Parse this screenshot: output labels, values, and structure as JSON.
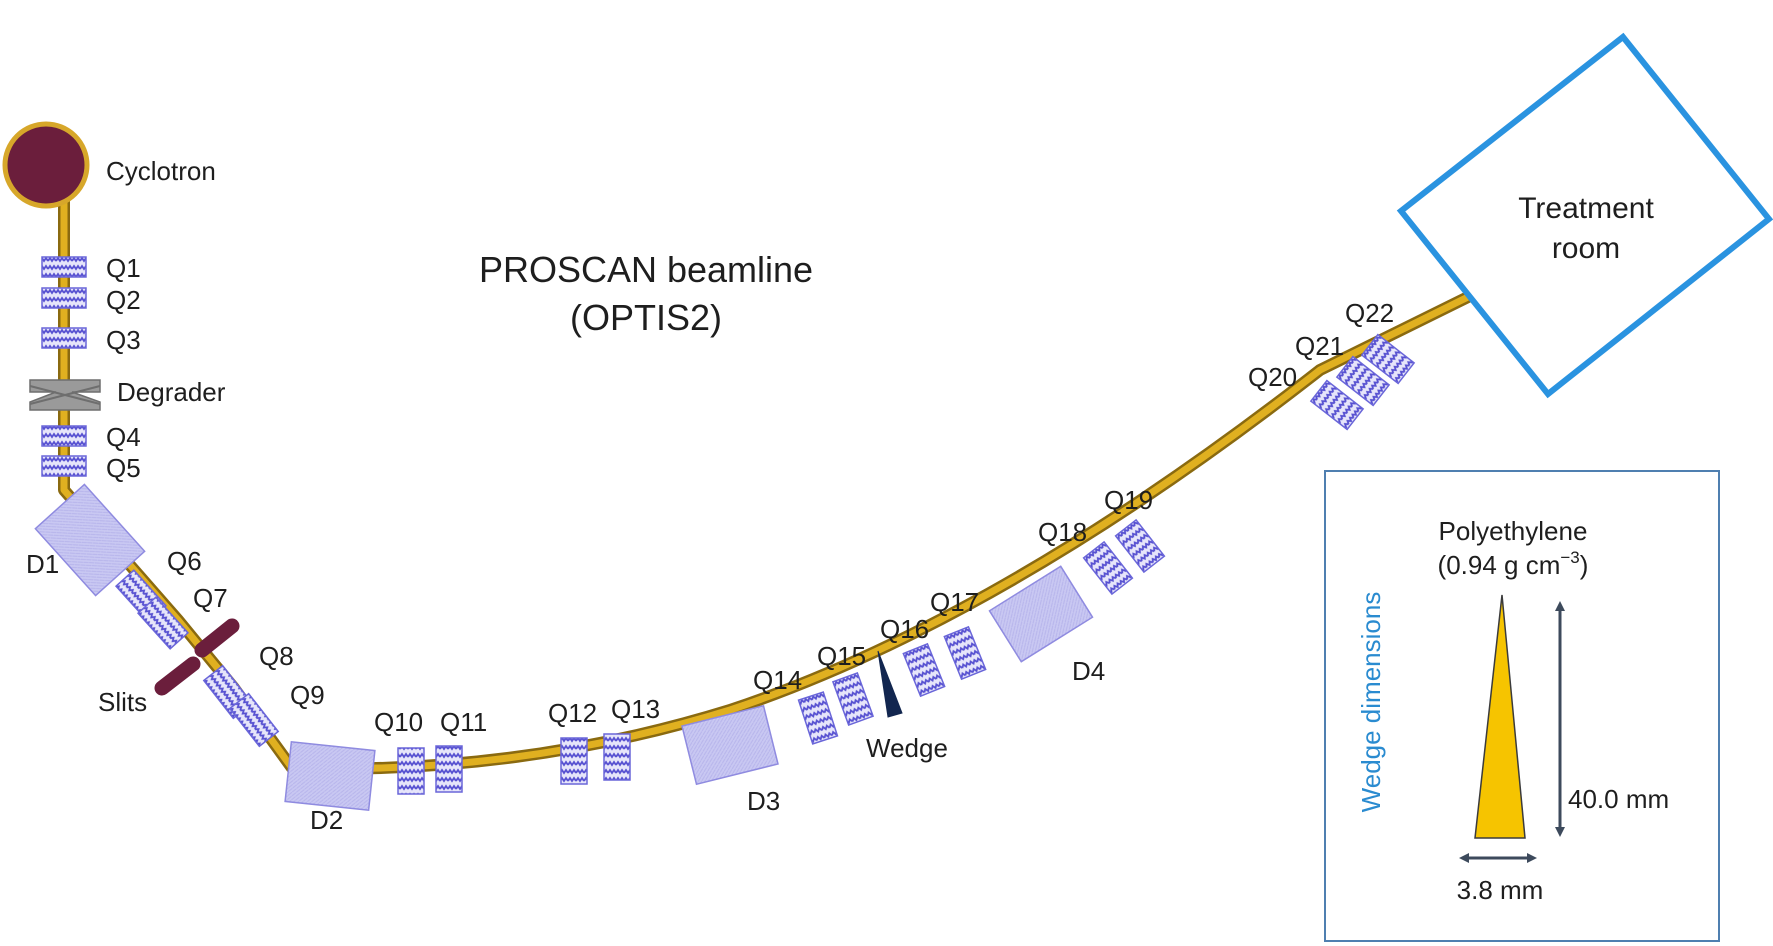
{
  "title": {
    "line1": "PROSCAN beamline",
    "line2": "(OPTIS2)"
  },
  "colors": {
    "beam": "#d9a91a",
    "beam_edge": "#8a6a10",
    "cyclotron_fill": "#6b1e3c",
    "cyclotron_rim": "#d7a72a",
    "magnet_fill": "#c9c8f2",
    "magnet_stroke": "#6a66d9",
    "quad_stripe": "#5751d1",
    "slits": "#6b1e3c",
    "wedge_marker": "#12264f",
    "room_border": "#2a93e0",
    "inset_border": "#4f7fb0",
    "inset_title": "#2a8bd0",
    "wedge_fill": "#f6c400",
    "dimension_arrow": "#3d4a5c"
  },
  "components": {
    "cyclotron": "Cyclotron",
    "degrader": "Degrader",
    "slits": "Slits",
    "wedge": "Wedge",
    "treatment_room_line1": "Treatment",
    "treatment_room_line2": "room"
  },
  "quadrupoles": [
    "Q1",
    "Q2",
    "Q3",
    "Q4",
    "Q5",
    "Q6",
    "Q7",
    "Q8",
    "Q9",
    "Q10",
    "Q11",
    "Q12",
    "Q13",
    "Q14",
    "Q15",
    "Q16",
    "Q17",
    "Q18",
    "Q19",
    "Q20",
    "Q21",
    "Q22"
  ],
  "dipoles": [
    "D1",
    "D2",
    "D3",
    "D4"
  ],
  "inset": {
    "title": "Wedge dimensions",
    "material": "Polyethylene",
    "density_prefix": "(0.94 g cm",
    "density_exponent": "−3",
    "density_suffix": ")",
    "height_label": "40.0 mm",
    "width_label": "3.8 mm"
  }
}
